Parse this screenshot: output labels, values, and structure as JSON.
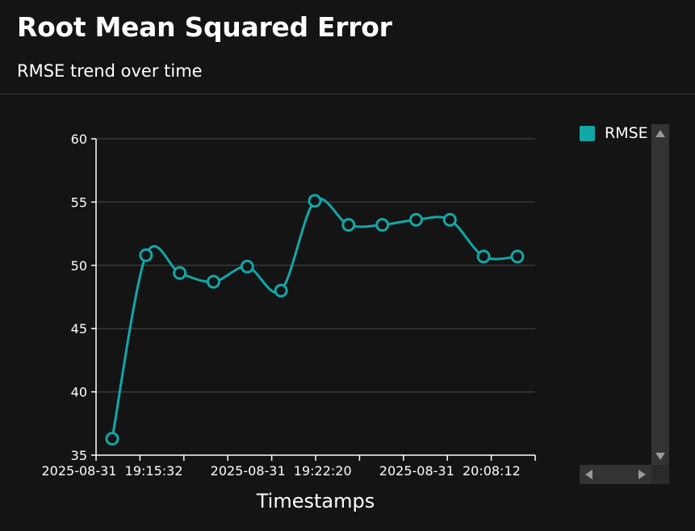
{
  "header": {
    "title": "Root Mean Squared Error",
    "subtitle": "RMSE trend over time"
  },
  "legend": {
    "items": [
      {
        "label": "RMSE",
        "color": "#12a7a7"
      }
    ]
  },
  "colors": {
    "background": "#141414",
    "series": "#12a7a7",
    "grid": "#3a3a3a",
    "axis": "#ffffff"
  },
  "chart_data": {
    "type": "line",
    "xlabel": "Timestamps",
    "ylabel": "",
    "ylim": [
      35,
      60
    ],
    "yticks": [
      35,
      40,
      45,
      50,
      55,
      60
    ],
    "xtick_labels": [
      {
        "index": 0,
        "label": "2025-08-31  19:15:32"
      },
      {
        "index": 5,
        "label": "2025-08-31  19:22:20"
      },
      {
        "index": 10,
        "label": "2025-08-31  20:08:12"
      }
    ],
    "grid": true,
    "legend_position": "top-right",
    "series": [
      {
        "name": "RMSE",
        "values": [
          36.3,
          50.8,
          49.4,
          48.7,
          49.9,
          48.0,
          55.1,
          53.2,
          53.2,
          53.6,
          53.6,
          50.7,
          50.7
        ]
      }
    ]
  }
}
